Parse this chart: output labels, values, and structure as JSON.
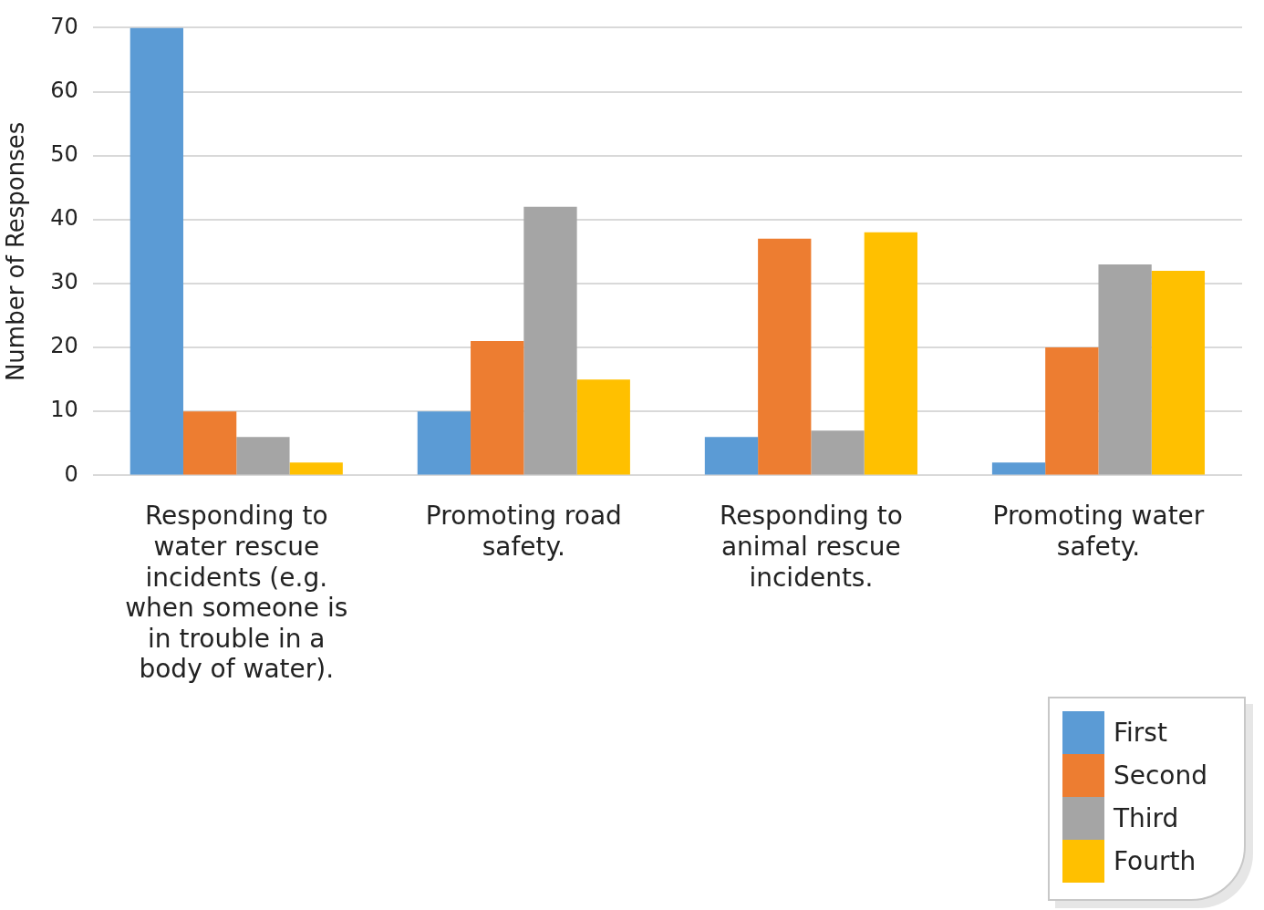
{
  "chart_data": {
    "type": "bar",
    "ylabel": "Number of Responses",
    "categories": [
      "Responding to water rescue incidents (e.g. when someone is in trouble in a body of water).",
      "Promoting road safety.",
      "Responding to animal rescue incidents.",
      "Promoting water safety."
    ],
    "series": [
      {
        "name": "First",
        "color": "#5b9bd5",
        "values": [
          70,
          10,
          6,
          2
        ]
      },
      {
        "name": "Second",
        "color": "#ed7d31",
        "values": [
          10,
          21,
          37,
          20
        ]
      },
      {
        "name": "Third",
        "color": "#a5a5a5",
        "values": [
          6,
          42,
          7,
          33
        ]
      },
      {
        "name": "Fourth",
        "color": "#ffc000",
        "values": [
          2,
          15,
          38,
          32
        ]
      }
    ],
    "ylim": [
      0,
      70
    ],
    "yticks": [
      0,
      10,
      20,
      30,
      40,
      50,
      60,
      70
    ],
    "grid": "y",
    "legend": "bottom right"
  }
}
